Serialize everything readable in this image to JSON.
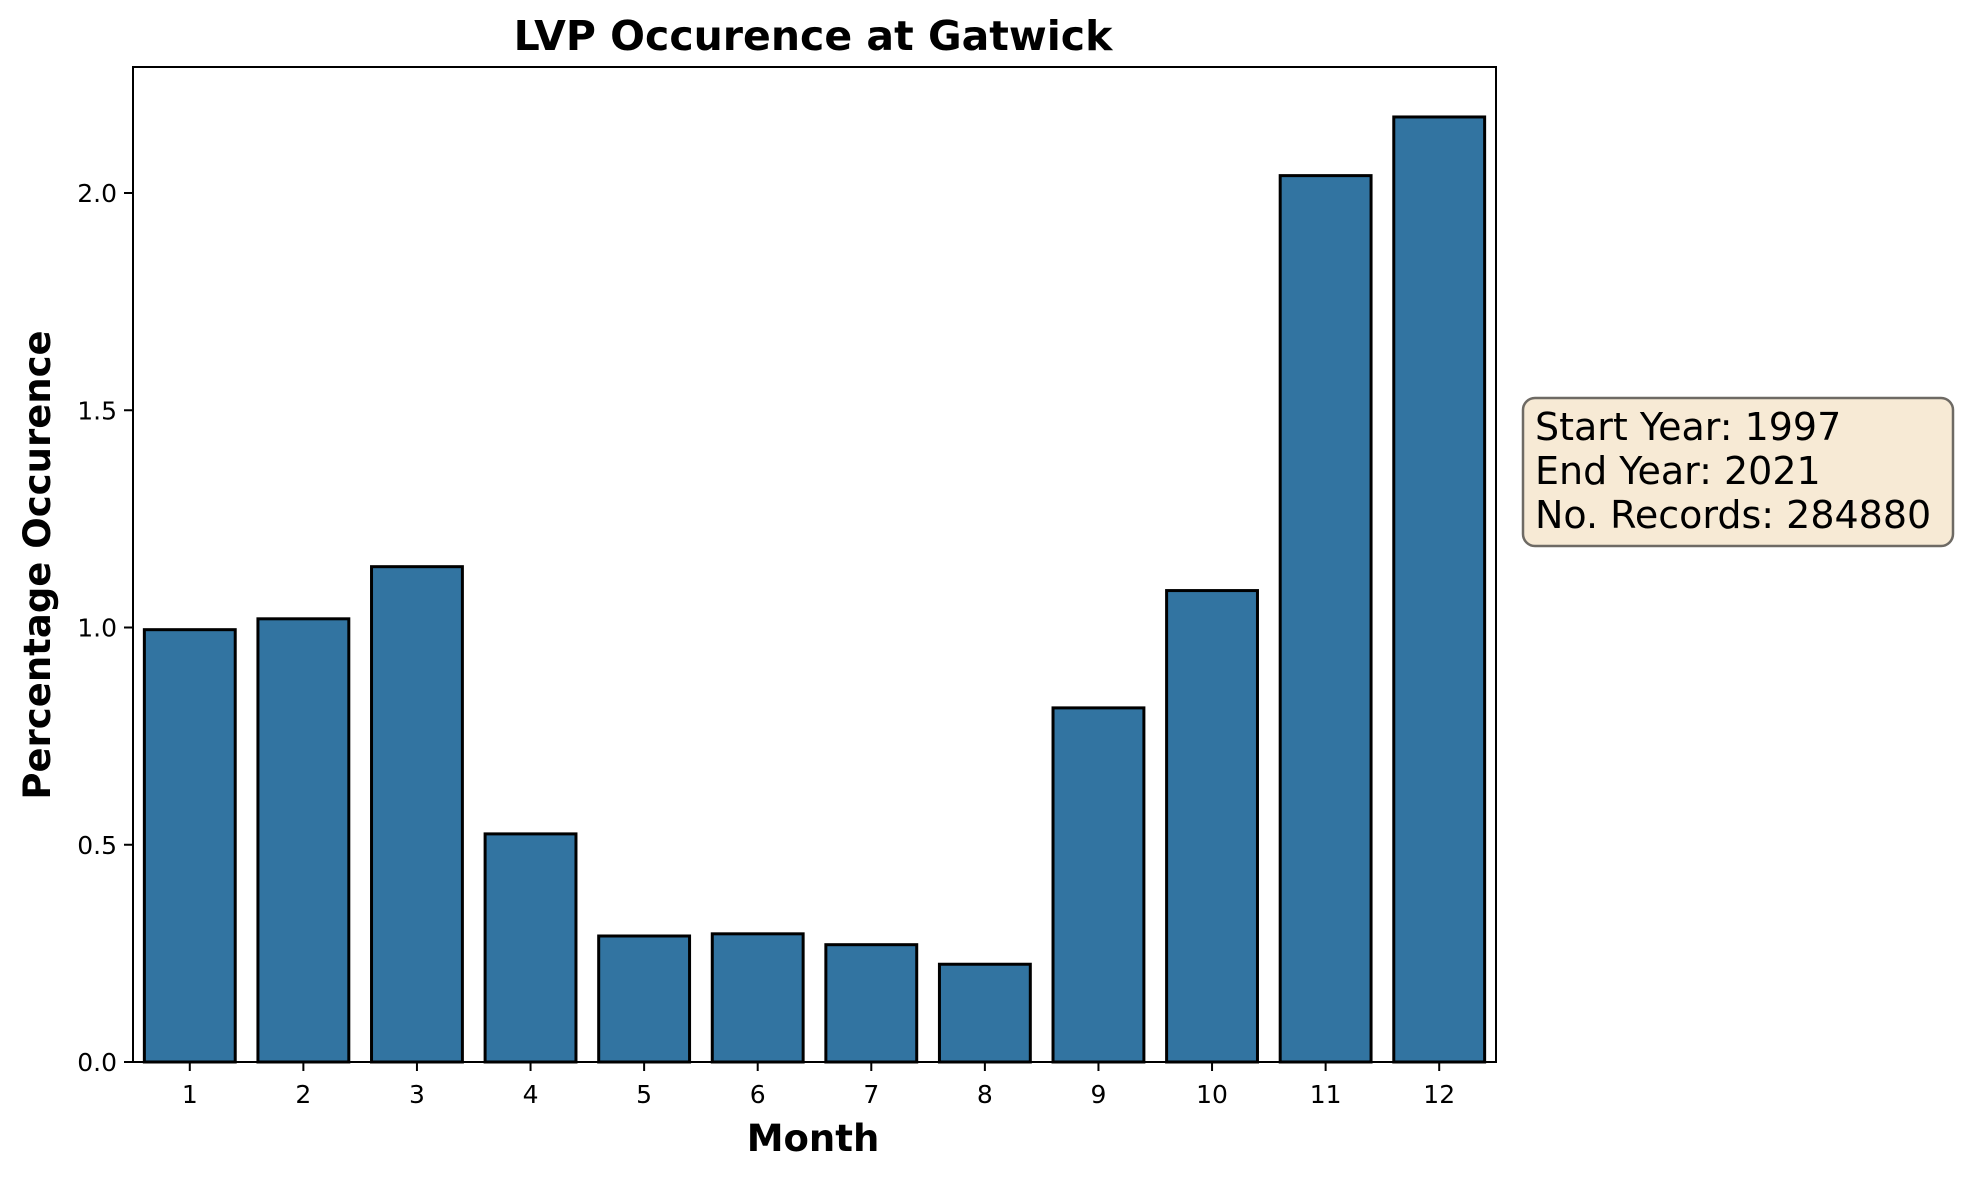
{
  "chart_data": {
    "type": "bar",
    "title": "LVP Occurence at Gatwick",
    "xlabel": "Month",
    "ylabel": "Percentage Occurence",
    "categories": [
      "1",
      "2",
      "3",
      "4",
      "5",
      "6",
      "7",
      "8",
      "9",
      "10",
      "11",
      "12"
    ],
    "values": [
      0.995,
      1.02,
      1.14,
      0.525,
      0.29,
      0.295,
      0.27,
      0.225,
      0.815,
      1.085,
      2.04,
      2.175
    ],
    "ylim": [
      0,
      2.29
    ],
    "yticks": [
      "0.0",
      "0.5",
      "1.0",
      "1.5",
      "2.0"
    ],
    "ytick_values": [
      0,
      0.5,
      1.0,
      1.5,
      2.0
    ],
    "grid": false,
    "bar_color": "#3274a1",
    "edge_color": "#000000",
    "annotation": {
      "lines": [
        "Start Year: 1997",
        "End Year: 2021",
        "No. Records: 284880"
      ],
      "background": "#f7ead5",
      "placement": "right of plot, vertically centered"
    }
  }
}
